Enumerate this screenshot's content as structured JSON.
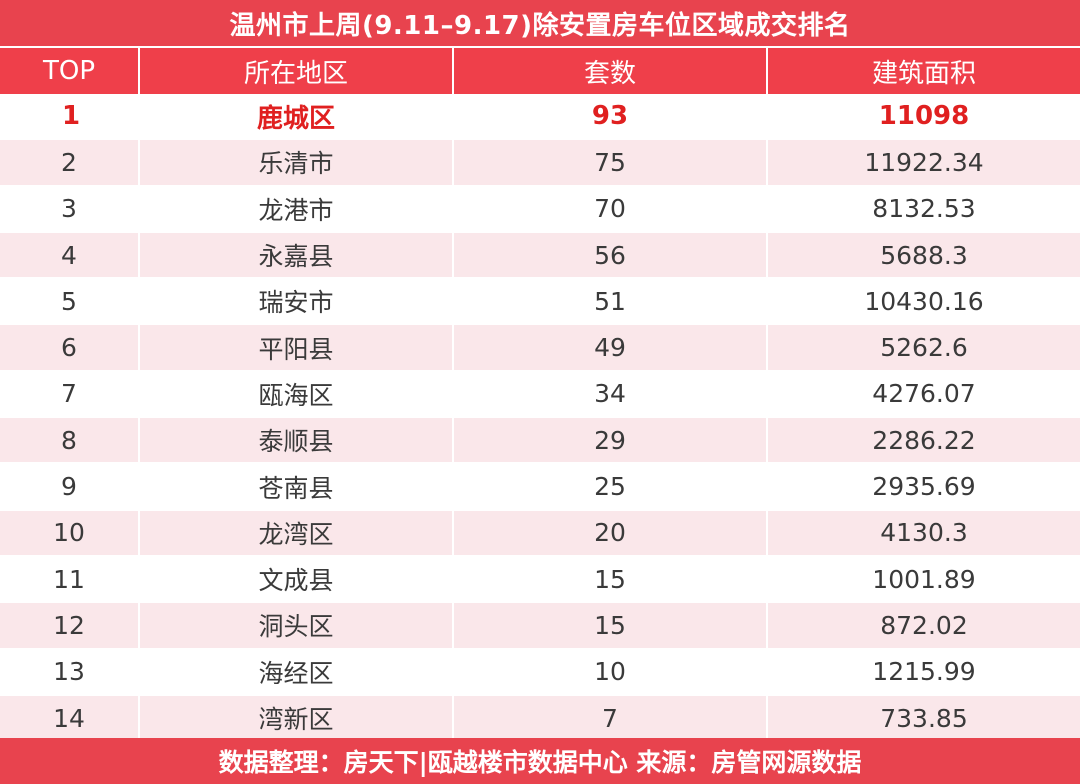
{
  "title": "温州市上周(9.11–9.17)除安置房车位区域成交排名",
  "columns": [
    "TOP",
    "所在地区",
    "套数",
    "建筑面积"
  ],
  "rows": [
    {
      "top": "1",
      "region": "鹿城区",
      "count": "93",
      "area": "11098"
    },
    {
      "top": "2",
      "region": "乐清市",
      "count": "75",
      "area": "11922.34"
    },
    {
      "top": "3",
      "region": "龙港市",
      "count": "70",
      "area": "8132.53"
    },
    {
      "top": "4",
      "region": "永嘉县",
      "count": "56",
      "area": "5688.3"
    },
    {
      "top": "5",
      "region": "瑞安市",
      "count": "51",
      "area": "10430.16"
    },
    {
      "top": "6",
      "region": "平阳县",
      "count": "49",
      "area": "5262.6"
    },
    {
      "top": "7",
      "region": "瓯海区",
      "count": "34",
      "area": "4276.07"
    },
    {
      "top": "8",
      "region": "泰顺县",
      "count": "29",
      "area": "2286.22"
    },
    {
      "top": "9",
      "region": "苍南县",
      "count": "25",
      "area": "2935.69"
    },
    {
      "top": "10",
      "region": "龙湾区",
      "count": "20",
      "area": "4130.3"
    },
    {
      "top": "11",
      "region": "文成县",
      "count": "15",
      "area": "1001.89"
    },
    {
      "top": "12",
      "region": "洞头区",
      "count": "15",
      "area": "872.02"
    },
    {
      "top": "13",
      "region": "海经区",
      "count": "10",
      "area": "1215.99"
    },
    {
      "top": "14",
      "region": "湾新区",
      "count": "7",
      "area": "733.85"
    }
  ],
  "footer": "数据整理：房天下|瓯越楼市数据中心 来源：房管网源数据",
  "colors": {
    "header": "#ef3f4a",
    "stripe": "#fae7ea",
    "highlight": "#e02020"
  }
}
